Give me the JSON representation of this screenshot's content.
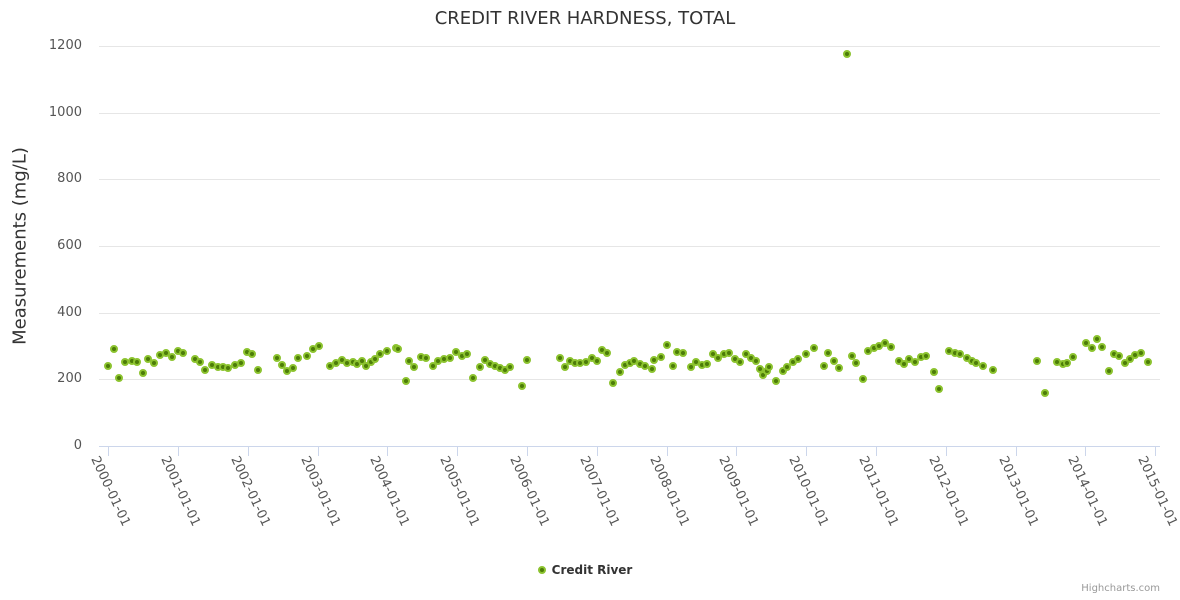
{
  "credits": {
    "label": "Highcharts.com"
  },
  "colors": {
    "marker_fill": "#4c7c08",
    "marker_ring": "#8cc32f",
    "grid": "#e6e6e6",
    "tick": "#ccd6eb",
    "title_text": "#333333",
    "label_text": "#555555",
    "credits_text": "#999999"
  },
  "chart_data": {
    "type": "scatter",
    "title": "CREDIT RIVER HARDNESS, TOTAL",
    "xlabel": "",
    "ylabel": "Measurements (mg/L)",
    "ylim": [
      0,
      1200
    ],
    "xlim": [
      1999.867,
      2015.07
    ],
    "grid": true,
    "legend_position": "bottom-center",
    "yticks": [
      {
        "value": 0,
        "label": "0"
      },
      {
        "value": 200,
        "label": "200"
      },
      {
        "value": 400,
        "label": "400"
      },
      {
        "value": 600,
        "label": "600"
      },
      {
        "value": 800,
        "label": "800"
      },
      {
        "value": 1000,
        "label": "1000"
      },
      {
        "value": 1200,
        "label": "1200"
      }
    ],
    "xticks": [
      {
        "value": 2000,
        "label": "2000-01-01"
      },
      {
        "value": 2001,
        "label": "2001-01-01"
      },
      {
        "value": 2002,
        "label": "2002-01-01"
      },
      {
        "value": 2003,
        "label": "2003-01-01"
      },
      {
        "value": 2004,
        "label": "2004-01-01"
      },
      {
        "value": 2005,
        "label": "2005-01-01"
      },
      {
        "value": 2006,
        "label": "2006-01-01"
      },
      {
        "value": 2007,
        "label": "2007-01-01"
      },
      {
        "value": 2008,
        "label": "2008-01-01"
      },
      {
        "value": 2009,
        "label": "2009-01-01"
      },
      {
        "value": 2010,
        "label": "2010-01-01"
      },
      {
        "value": 2011,
        "label": "2011-01-01"
      },
      {
        "value": 2012,
        "label": "2012-01-01"
      },
      {
        "value": 2013,
        "label": "2013-01-01"
      },
      {
        "value": 2014,
        "label": "2014-01-01"
      },
      {
        "value": 2015,
        "label": "2015-01-01"
      }
    ],
    "series": [
      {
        "name": "Credit River",
        "color": "#8cc32f",
        "points": [
          [
            2000.0,
            241
          ],
          [
            2000.08,
            292
          ],
          [
            2000.15,
            205
          ],
          [
            2000.24,
            253
          ],
          [
            2000.34,
            256
          ],
          [
            2000.41,
            253
          ],
          [
            2000.5,
            220
          ],
          [
            2000.57,
            262
          ],
          [
            2000.65,
            250
          ],
          [
            2000.74,
            274
          ],
          [
            2000.83,
            280
          ],
          [
            2000.91,
            268
          ],
          [
            2001.0,
            286
          ],
          [
            2001.07,
            280
          ],
          [
            2001.24,
            262
          ],
          [
            2001.31,
            253
          ],
          [
            2001.39,
            229
          ],
          [
            2001.49,
            244
          ],
          [
            2001.57,
            238
          ],
          [
            2001.64,
            238
          ],
          [
            2001.71,
            235
          ],
          [
            2001.81,
            244
          ],
          [
            2001.9,
            250
          ],
          [
            2001.99,
            283
          ],
          [
            2002.06,
            277
          ],
          [
            2002.14,
            229
          ],
          [
            2002.42,
            265
          ],
          [
            2002.49,
            244
          ],
          [
            2002.56,
            226
          ],
          [
            2002.65,
            235
          ],
          [
            2002.72,
            265
          ],
          [
            2002.85,
            271
          ],
          [
            2002.93,
            292
          ],
          [
            2003.02,
            301
          ],
          [
            2003.18,
            241
          ],
          [
            2003.26,
            250
          ],
          [
            2003.35,
            259
          ],
          [
            2003.42,
            250
          ],
          [
            2003.51,
            253
          ],
          [
            2003.57,
            247
          ],
          [
            2003.63,
            256
          ],
          [
            2003.69,
            241
          ],
          [
            2003.76,
            253
          ],
          [
            2003.82,
            262
          ],
          [
            2003.89,
            277
          ],
          [
            2003.99,
            286
          ],
          [
            2004.12,
            295
          ],
          [
            2004.15,
            292
          ],
          [
            2004.26,
            196
          ],
          [
            2004.31,
            256
          ],
          [
            2004.38,
            238
          ],
          [
            2004.48,
            268
          ],
          [
            2004.55,
            265
          ],
          [
            2004.65,
            241
          ],
          [
            2004.72,
            256
          ],
          [
            2004.81,
            262
          ],
          [
            2004.9,
            265
          ],
          [
            2004.98,
            283
          ],
          [
            2005.07,
            271
          ],
          [
            2005.14,
            277
          ],
          [
            2005.23,
            205
          ],
          [
            2005.33,
            238
          ],
          [
            2005.4,
            259
          ],
          [
            2005.47,
            247
          ],
          [
            2005.54,
            241
          ],
          [
            2005.61,
            235
          ],
          [
            2005.68,
            229
          ],
          [
            2005.76,
            238
          ],
          [
            2005.93,
            181
          ],
          [
            2006.0,
            259
          ],
          [
            2006.47,
            265
          ],
          [
            2006.54,
            238
          ],
          [
            2006.62,
            256
          ],
          [
            2006.69,
            250
          ],
          [
            2006.76,
            250
          ],
          [
            2006.84,
            253
          ],
          [
            2006.93,
            265
          ],
          [
            2007.0,
            256
          ],
          [
            2007.07,
            289
          ],
          [
            2007.14,
            280
          ],
          [
            2007.23,
            190
          ],
          [
            2007.33,
            223
          ],
          [
            2007.4,
            244
          ],
          [
            2007.47,
            250
          ],
          [
            2007.54,
            256
          ],
          [
            2007.62,
            247
          ],
          [
            2007.69,
            241
          ],
          [
            2007.79,
            232
          ],
          [
            2007.82,
            259
          ],
          [
            2007.92,
            268
          ],
          [
            2008.01,
            304
          ],
          [
            2008.09,
            241
          ],
          [
            2008.15,
            283
          ],
          [
            2008.24,
            280
          ],
          [
            2008.35,
            238
          ],
          [
            2008.42,
            253
          ],
          [
            2008.51,
            244
          ],
          [
            2008.58,
            247
          ],
          [
            2008.66,
            277
          ],
          [
            2008.74,
            265
          ],
          [
            2008.82,
            277
          ],
          [
            2008.89,
            280
          ],
          [
            2008.98,
            262
          ],
          [
            2009.05,
            253
          ],
          [
            2009.14,
            277
          ],
          [
            2009.21,
            265
          ],
          [
            2009.28,
            256
          ],
          [
            2009.34,
            232
          ],
          [
            2009.38,
            214
          ],
          [
            2009.44,
            226
          ],
          [
            2009.47,
            238
          ],
          [
            2009.57,
            196
          ],
          [
            2009.67,
            226
          ],
          [
            2009.72,
            238
          ],
          [
            2009.81,
            253
          ],
          [
            2009.88,
            262
          ],
          [
            2010.0,
            277
          ],
          [
            2010.11,
            295
          ],
          [
            2010.25,
            241
          ],
          [
            2010.31,
            280
          ],
          [
            2010.4,
            256
          ],
          [
            2010.47,
            235
          ],
          [
            2010.58,
            1175
          ],
          [
            2010.65,
            271
          ],
          [
            2010.72,
            250
          ],
          [
            2010.81,
            202
          ],
          [
            2010.88,
            286
          ],
          [
            2010.97,
            295
          ],
          [
            2011.04,
            301
          ],
          [
            2011.13,
            310
          ],
          [
            2011.21,
            298
          ],
          [
            2011.33,
            256
          ],
          [
            2011.4,
            247
          ],
          [
            2011.47,
            262
          ],
          [
            2011.56,
            253
          ],
          [
            2011.64,
            268
          ],
          [
            2011.71,
            271
          ],
          [
            2011.83,
            223
          ],
          [
            2011.9,
            171
          ],
          [
            2012.04,
            286
          ],
          [
            2012.13,
            280
          ],
          [
            2012.21,
            277
          ],
          [
            2012.3,
            265
          ],
          [
            2012.37,
            256
          ],
          [
            2012.44,
            250
          ],
          [
            2012.53,
            241
          ],
          [
            2012.67,
            229
          ],
          [
            2013.31,
            256
          ],
          [
            2013.42,
            160
          ],
          [
            2013.59,
            251
          ],
          [
            2013.68,
            246
          ],
          [
            2013.74,
            250
          ],
          [
            2013.82,
            266
          ],
          [
            2014.01,
            310
          ],
          [
            2014.1,
            295
          ],
          [
            2014.17,
            322
          ],
          [
            2014.24,
            298
          ],
          [
            2014.34,
            226
          ],
          [
            2014.41,
            277
          ],
          [
            2014.48,
            271
          ],
          [
            2014.57,
            250
          ],
          [
            2014.64,
            262
          ],
          [
            2014.71,
            274
          ],
          [
            2014.8,
            280
          ],
          [
            2014.9,
            253
          ]
        ]
      }
    ]
  }
}
